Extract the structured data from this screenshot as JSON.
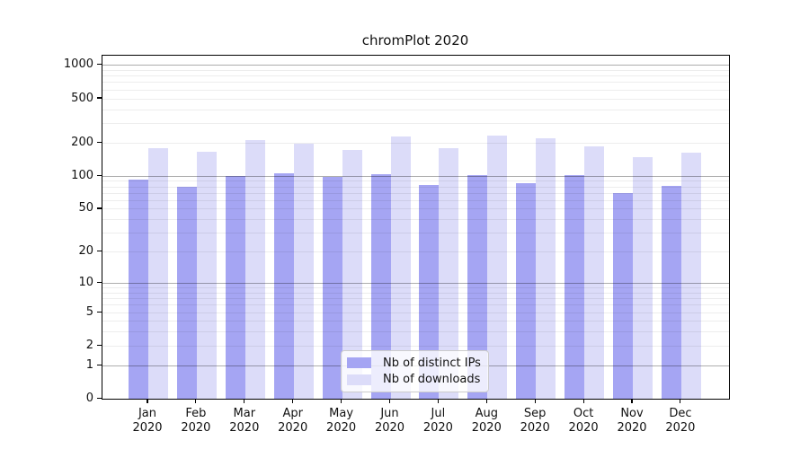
{
  "chart_data": {
    "type": "bar",
    "title": "chromPlot 2020",
    "categories": [
      "Jan",
      "Feb",
      "Mar",
      "Apr",
      "May",
      "Jun",
      "Jul",
      "Aug",
      "Sep",
      "Oct",
      "Nov",
      "Dec"
    ],
    "year": "2020",
    "series": [
      {
        "name": "Nb of distinct IPs",
        "color": "#a5a5f3",
        "values": [
          93,
          80,
          100,
          107,
          98,
          105,
          83,
          103,
          87,
          103,
          70,
          82
        ]
      },
      {
        "name": "Nb of downloads",
        "color": "#dcdcf9",
        "values": [
          180,
          168,
          213,
          196,
          172,
          227,
          180,
          232,
          222,
          185,
          148,
          163
        ]
      }
    ],
    "yticks": [
      0,
      1,
      2,
      5,
      10,
      20,
      50,
      100,
      200,
      500,
      1000
    ],
    "scale": "log1p",
    "ylim": [
      0,
      1220
    ],
    "xlabel": "",
    "ylabel": "",
    "grid": true,
    "legend_position": "lower center",
    "colors": {
      "major_grid": "#adadad",
      "minor_grid": "#ededed",
      "axis": "#000000"
    }
  }
}
